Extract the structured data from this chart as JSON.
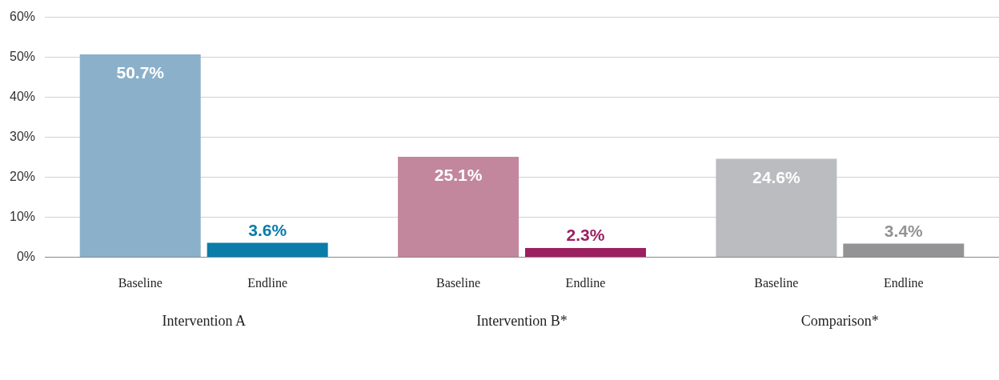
{
  "chart_data": {
    "type": "bar",
    "categories": [
      "Intervention A",
      "Intervention B*",
      "Comparison*"
    ],
    "series": [
      {
        "name": "Baseline",
        "colors": [
          "#8bb0ca",
          "#c2879c",
          "#bbbcc0"
        ],
        "values": [
          50.7,
          25.1,
          24.6
        ],
        "value_labels": [
          "50.7%",
          "25.1%",
          "24.6%"
        ]
      },
      {
        "name": "Endline",
        "colors": [
          "#0a7caa",
          "#9c1f60",
          "#939396"
        ],
        "values": [
          3.6,
          2.3,
          3.4
        ],
        "value_labels": [
          "3.6%",
          "2.3%",
          "3.4%"
        ]
      }
    ],
    "ylim": [
      0,
      60
    ],
    "yticks": [
      {
        "value": 0,
        "label": "0%"
      },
      {
        "value": 10,
        "label": "10%"
      },
      {
        "value": 20,
        "label": "20%"
      },
      {
        "value": 30,
        "label": "30%"
      },
      {
        "value": 40,
        "label": "40%"
      },
      {
        "value": 50,
        "label": "50%"
      },
      {
        "value": 60,
        "label": "60%"
      }
    ],
    "grid": "y",
    "legend": false
  }
}
